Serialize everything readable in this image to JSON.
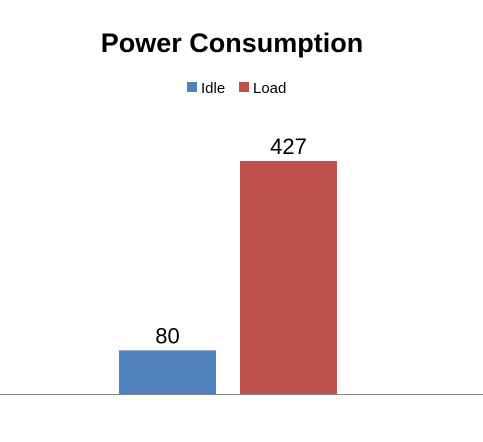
{
  "chart_data": {
    "type": "bar",
    "title": "Power Consumption",
    "xlabel": "",
    "ylabel": "",
    "categories": [
      ""
    ],
    "series": [
      {
        "name": "Idle",
        "values": [
          80
        ],
        "color": "#4F81BD"
      },
      {
        "name": "Load",
        "values": [
          427
        ],
        "color": "#C0504D"
      }
    ],
    "ylim": [
      0,
      500
    ],
    "grid": false,
    "legend": "top",
    "data_labels": true
  }
}
